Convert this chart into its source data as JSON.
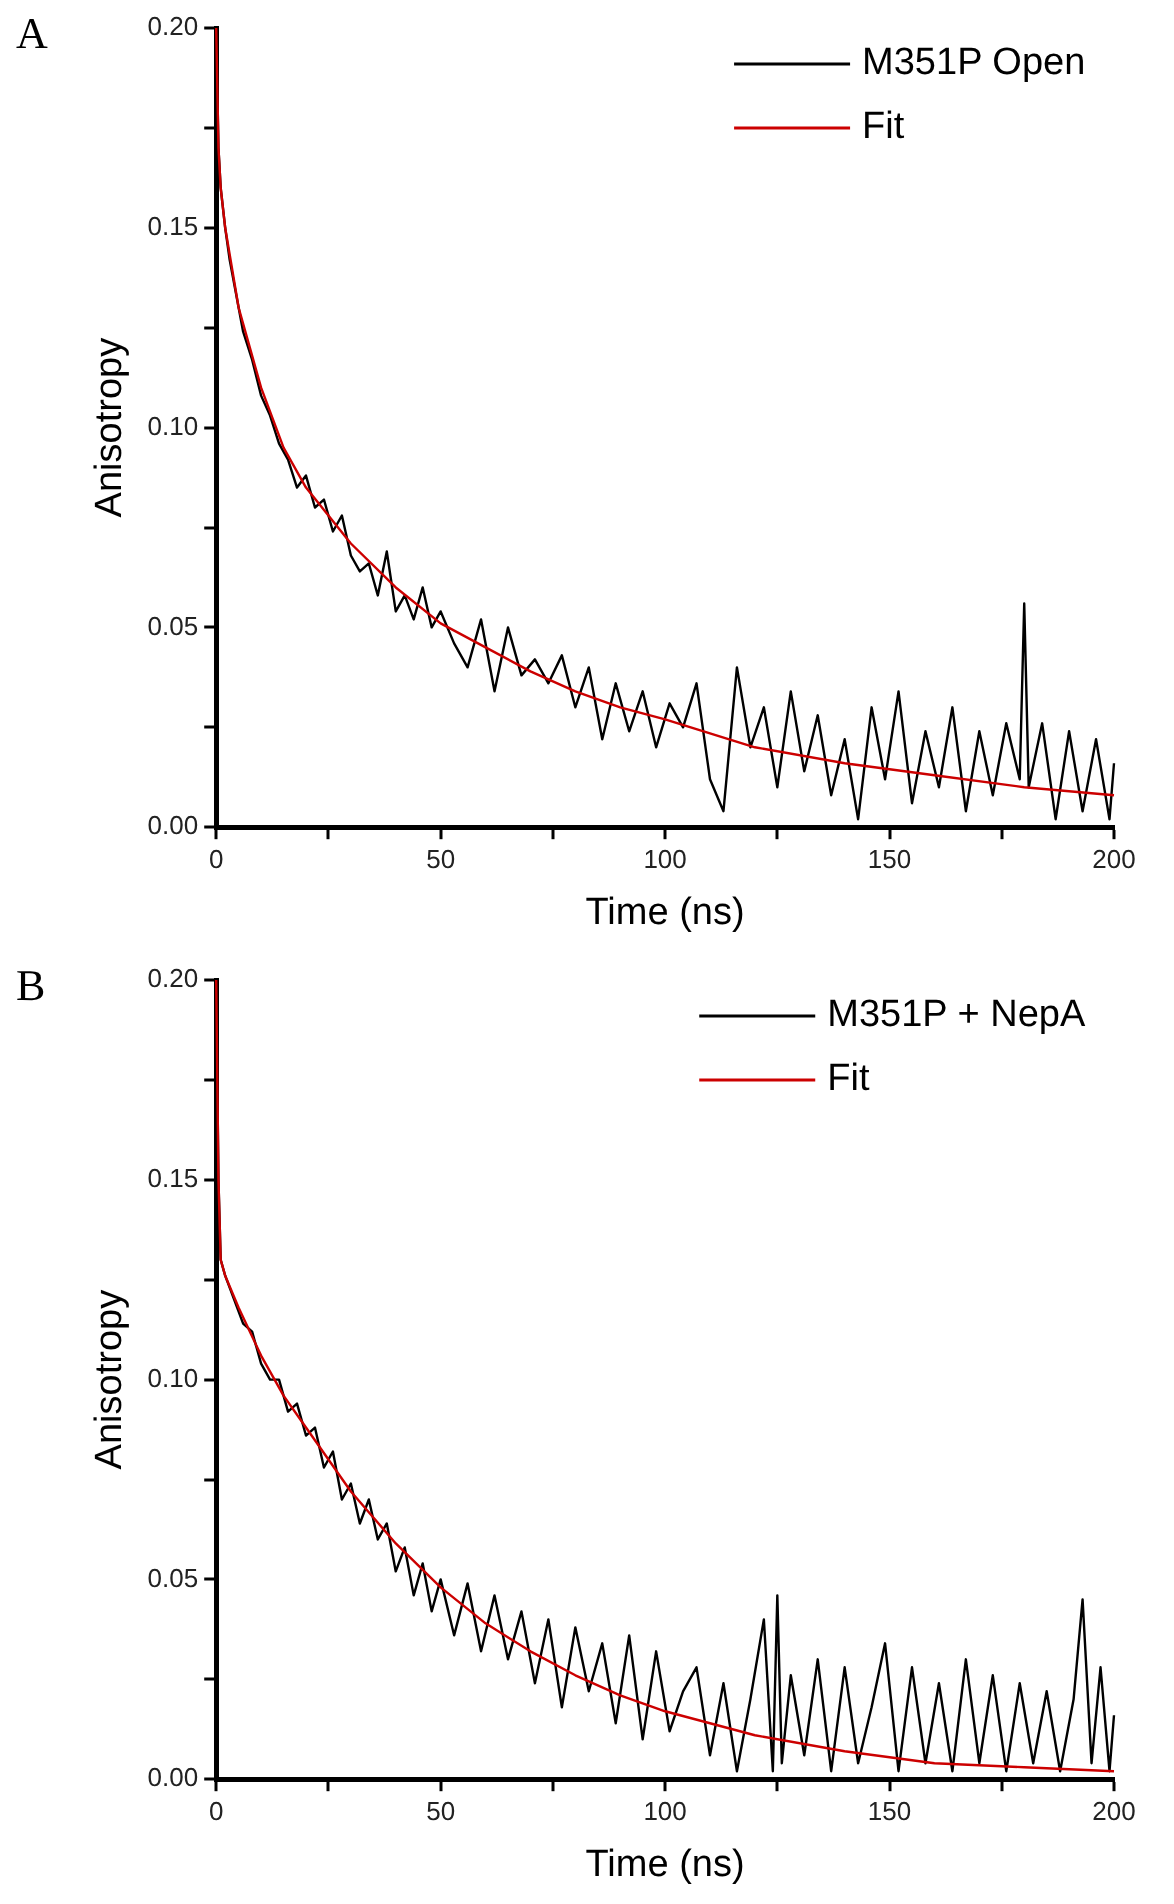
{
  "chart_data": [
    {
      "type": "line",
      "title": "A",
      "xlabel": "Time (ns)",
      "ylabel": "Anisotropy",
      "xlim": [
        0,
        200
      ],
      "ylim": [
        0,
        0.2
      ],
      "xticks": [
        0,
        {
          "value": 25,
          "label": null
        },
        50,
        {
          "value": 75,
          "label": null
        },
        100,
        {
          "value": 125,
          "label": null
        },
        150,
        {
          "value": 175,
          "label": null
        },
        200
      ],
      "yticks": [
        {
          "value": 0,
          "label": "0.00"
        },
        {
          "value": 0.025,
          "label": null
        },
        {
          "value": 0.05,
          "label": "0.05"
        },
        {
          "value": 0.075,
          "label": null
        },
        {
          "value": 0.1,
          "label": "0.10"
        },
        {
          "value": 0.125,
          "label": null
        },
        {
          "value": 0.15,
          "label": "0.15"
        },
        {
          "value": 0.175,
          "label": null
        },
        {
          "value": 0.2,
          "label": "0.20"
        }
      ],
      "grid": false,
      "legend": "top right",
      "marker": "none",
      "line_style": "solid",
      "series": [
        {
          "name": "M351P Open",
          "color": "#000000",
          "x": [
            0,
            0.5,
            1,
            2,
            3,
            4,
            6,
            8,
            10,
            12,
            14,
            16,
            18,
            20,
            22,
            24,
            26,
            28,
            30,
            32,
            34,
            36,
            38,
            40,
            42,
            44,
            46,
            48,
            50,
            53,
            56,
            59,
            62,
            65,
            68,
            71,
            74,
            77,
            80,
            83,
            86,
            89,
            92,
            95,
            98,
            101,
            104,
            107,
            110,
            113,
            116,
            119,
            122,
            125,
            128,
            131,
            134,
            137,
            140,
            143,
            146,
            149,
            152,
            155,
            158,
            161,
            164,
            167,
            170,
            173,
            176,
            179,
            180,
            181,
            184,
            187,
            190,
            193,
            196,
            199,
            200
          ],
          "values": [
            0.2,
            0.17,
            0.16,
            0.15,
            0.142,
            0.136,
            0.124,
            0.117,
            0.108,
            0.103,
            0.096,
            0.092,
            0.085,
            0.088,
            0.08,
            0.082,
            0.074,
            0.078,
            0.068,
            0.064,
            0.066,
            0.058,
            0.069,
            0.054,
            0.058,
            0.052,
            0.06,
            0.05,
            0.054,
            0.046,
            0.04,
            0.052,
            0.034,
            0.05,
            0.038,
            0.042,
            0.036,
            0.043,
            0.03,
            0.04,
            0.022,
            0.036,
            0.024,
            0.034,
            0.02,
            0.031,
            0.025,
            0.036,
            0.012,
            0.004,
            0.04,
            0.02,
            0.03,
            0.01,
            0.034,
            0.014,
            0.028,
            0.008,
            0.022,
            0.002,
            0.03,
            0.012,
            0.034,
            0.006,
            0.024,
            0.01,
            0.03,
            0.004,
            0.024,
            0.008,
            0.026,
            0.012,
            0.056,
            0.01,
            0.026,
            0.002,
            0.024,
            0.004,
            0.022,
            0.002,
            0.016
          ]
        },
        {
          "name": "Fit",
          "color": "#cc0000",
          "x": [
            0,
            0.5,
            1,
            2,
            5,
            10,
            15,
            20,
            30,
            40,
            50,
            60,
            70,
            80,
            90,
            100,
            120,
            140,
            160,
            180,
            200
          ],
          "values": [
            0.2,
            0.17,
            0.16,
            0.15,
            0.13,
            0.11,
            0.095,
            0.085,
            0.071,
            0.06,
            0.051,
            0.045,
            0.039,
            0.034,
            0.03,
            0.027,
            0.02,
            0.016,
            0.013,
            0.01,
            0.008
          ]
        }
      ]
    },
    {
      "type": "line",
      "title": "B",
      "xlabel": "Time (ns)",
      "ylabel": "Anisotropy",
      "xlim": [
        0,
        200
      ],
      "ylim": [
        0,
        0.2
      ],
      "xticks": [
        0,
        {
          "value": 25,
          "label": null
        },
        50,
        {
          "value": 75,
          "label": null
        },
        100,
        {
          "value": 125,
          "label": null
        },
        150,
        {
          "value": 175,
          "label": null
        },
        200
      ],
      "yticks": [
        {
          "value": 0,
          "label": "0.00"
        },
        {
          "value": 0.025,
          "label": null
        },
        {
          "value": 0.05,
          "label": "0.05"
        },
        {
          "value": 0.075,
          "label": null
        },
        {
          "value": 0.1,
          "label": "0.10"
        },
        {
          "value": 0.125,
          "label": null
        },
        {
          "value": 0.15,
          "label": "0.15"
        },
        {
          "value": 0.175,
          "label": null
        },
        {
          "value": 0.2,
          "label": "0.20"
        }
      ],
      "grid": false,
      "legend": "top right",
      "marker": "none",
      "line_style": "solid",
      "series": [
        {
          "name": "M351P + NepA",
          "color": "#000000",
          "x": [
            0,
            0.5,
            1,
            2,
            4,
            6,
            8,
            10,
            12,
            14,
            16,
            18,
            20,
            22,
            24,
            26,
            28,
            30,
            32,
            34,
            36,
            38,
            40,
            42,
            44,
            46,
            48,
            50,
            53,
            56,
            59,
            62,
            65,
            68,
            71,
            74,
            77,
            80,
            83,
            86,
            89,
            92,
            95,
            98,
            101,
            104,
            107,
            110,
            113,
            116,
            119,
            122,
            124,
            125,
            126,
            128,
            131,
            134,
            137,
            140,
            143,
            146,
            149,
            152,
            155,
            158,
            161,
            164,
            167,
            170,
            173,
            176,
            179,
            182,
            185,
            188,
            191,
            193,
            195,
            197,
            199,
            200
          ],
          "values": [
            0.2,
            0.15,
            0.13,
            0.126,
            0.12,
            0.114,
            0.112,
            0.104,
            0.1,
            0.1,
            0.092,
            0.094,
            0.086,
            0.088,
            0.078,
            0.082,
            0.07,
            0.074,
            0.064,
            0.07,
            0.06,
            0.064,
            0.052,
            0.058,
            0.046,
            0.054,
            0.042,
            0.05,
            0.036,
            0.049,
            0.032,
            0.046,
            0.03,
            0.042,
            0.024,
            0.04,
            0.018,
            0.038,
            0.022,
            0.034,
            0.014,
            0.036,
            0.01,
            0.032,
            0.012,
            0.022,
            0.028,
            0.006,
            0.024,
            0.002,
            0.02,
            0.04,
            0.002,
            0.046,
            0.004,
            0.026,
            0.006,
            0.03,
            0.002,
            0.028,
            0.004,
            0.018,
            0.034,
            0.002,
            0.028,
            0.004,
            0.024,
            0.002,
            0.03,
            0.004,
            0.026,
            0.002,
            0.024,
            0.004,
            0.022,
            0.002,
            0.02,
            0.045,
            0.004,
            0.028,
            0.002,
            0.016
          ]
        },
        {
          "name": "Fit",
          "color": "#cc0000",
          "x": [
            0,
            0.5,
            1,
            2,
            5,
            10,
            15,
            20,
            30,
            40,
            50,
            60,
            70,
            80,
            90,
            100,
            120,
            140,
            160,
            180,
            200
          ],
          "values": [
            0.2,
            0.15,
            0.13,
            0.126,
            0.118,
            0.106,
            0.096,
            0.088,
            0.072,
            0.059,
            0.048,
            0.039,
            0.032,
            0.026,
            0.021,
            0.017,
            0.011,
            0.007,
            0.004,
            0.003,
            0.002
          ]
        }
      ]
    }
  ]
}
